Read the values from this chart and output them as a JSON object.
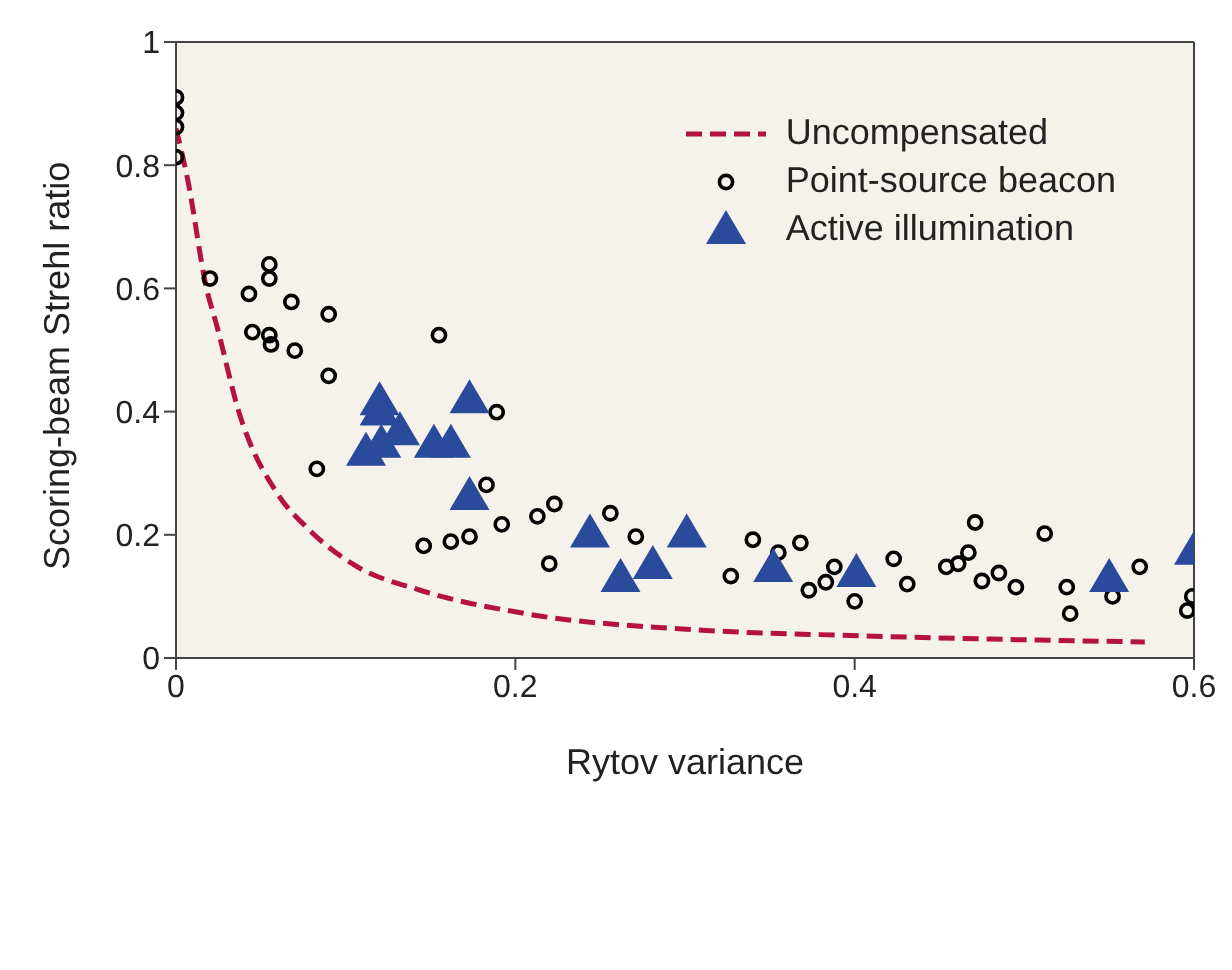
{
  "chart_data": {
    "type": "scatter",
    "xlabel": "Rytov variance",
    "ylabel": "Scoring-beam Strehl ratio",
    "xlim": [
      0,
      0.6
    ],
    "xticks": [
      0,
      0.2,
      0.4,
      0.6
    ],
    "ylim": [
      0,
      1
    ],
    "yticks": [
      0,
      0.2,
      0.4,
      0.6,
      0.8,
      1
    ],
    "legend": "top right",
    "series": [
      {
        "name": "Uncompensated",
        "type": "line",
        "color": "#b5123e",
        "line_style": "dashed",
        "marker": "none",
        "x": [
          0,
          0.007,
          0.018,
          0.024,
          0.037,
          0.06,
          0.077,
          0.105,
          0.144,
          0.206,
          0.305,
          0.405,
          0.571
        ],
        "values": [
          0.86,
          0.775,
          0.6,
          0.54,
          0.4,
          0.266,
          0.212,
          0.151,
          0.11,
          0.072,
          0.046,
          0.036,
          0.026
        ]
      },
      {
        "name": "Point-source beacon",
        "color": "#000000",
        "marker": "circle",
        "x": [
          0,
          0,
          0,
          0,
          0.02,
          0.043,
          0.055,
          0.055,
          0.068,
          0.09,
          0.045,
          0.055,
          0.056,
          0.07,
          0.09,
          0.155,
          0.189,
          0.083,
          0.183,
          0.192,
          0.173,
          0.162,
          0.146,
          0.213,
          0.223,
          0.22,
          0.256,
          0.271,
          0.327,
          0.34,
          0.355,
          0.368,
          0.373,
          0.383,
          0.388,
          0.4,
          0.423,
          0.431,
          0.454,
          0.461,
          0.467,
          0.471,
          0.475,
          0.485,
          0.495,
          0.512,
          0.525,
          0.527,
          0.552,
          0.568,
          0.599,
          0.596
        ],
        "values": [
          0.91,
          0.885,
          0.862,
          0.813,
          0.616,
          0.591,
          0.639,
          0.616,
          0.578,
          0.558,
          0.529,
          0.524,
          0.509,
          0.499,
          0.458,
          0.524,
          0.399,
          0.307,
          0.281,
          0.217,
          0.197,
          0.189,
          0.182,
          0.23,
          0.25,
          0.153,
          0.235,
          0.197,
          0.133,
          0.192,
          0.171,
          0.187,
          0.11,
          0.123,
          0.148,
          0.092,
          0.161,
          0.12,
          0.148,
          0.153,
          0.171,
          0.22,
          0.125,
          0.138,
          0.115,
          0.202,
          0.115,
          0.072,
          0.1,
          0.148,
          0.1,
          0.077
        ]
      },
      {
        "name": "Active illumination",
        "color": "#2a4a9c",
        "marker": "triangle",
        "x": [
          0.12,
          0.12,
          0.173,
          0.132,
          0.121,
          0.112,
          0.152,
          0.162,
          0.173,
          0.244,
          0.301,
          0.262,
          0.281,
          0.352,
          0.401,
          0.55,
          0.6
        ],
        "values": [
          0.417,
          0.4,
          0.42,
          0.368,
          0.348,
          0.335,
          0.348,
          0.348,
          0.263,
          0.202,
          0.202,
          0.13,
          0.151,
          0.146,
          0.138,
          0.13,
          0.174
        ]
      }
    ]
  }
}
